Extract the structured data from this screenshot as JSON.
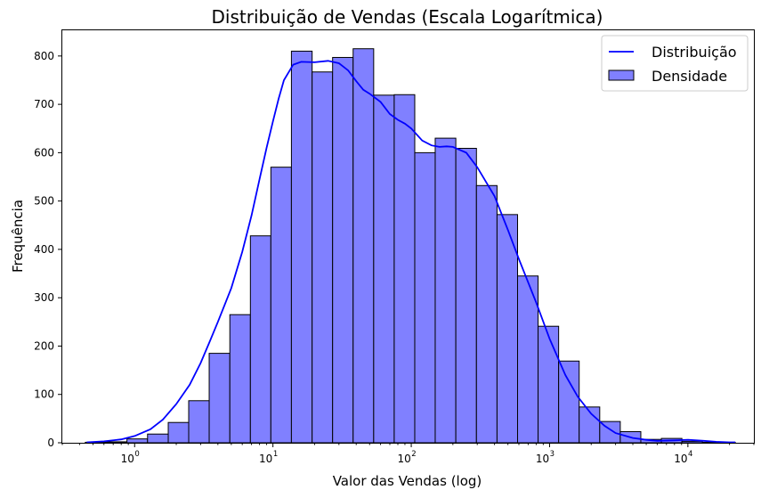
{
  "chart_data": {
    "type": "bar",
    "title": "Distribuição de Vendas (Escala Logarítmica)",
    "xlabel": "Valor das Vendas (log)",
    "ylabel": "Frequência",
    "xscale": "log",
    "xlim": [
      0.3,
      30000
    ],
    "ylim": [
      0,
      855
    ],
    "grid": false,
    "legend_position": "top-right",
    "x_ticks": [
      {
        "value": 1,
        "base": "10",
        "exp": "0"
      },
      {
        "value": 10,
        "base": "10",
        "exp": "1"
      },
      {
        "value": 100,
        "base": "10",
        "exp": "2"
      },
      {
        "value": 1000,
        "base": "10",
        "exp": "3"
      },
      {
        "value": 10000,
        "base": "10",
        "exp": "4"
      }
    ],
    "y_ticks": [
      0,
      100,
      200,
      300,
      400,
      500,
      600,
      700,
      800
    ],
    "bar_color": "#8080ff",
    "bar_edge_color": "#000000",
    "line_color": "#0000ff",
    "bin_edges": [
      0.44,
      0.63,
      0.88,
      1.24,
      1.75,
      2.46,
      3.46,
      4.88,
      6.87,
      9.66,
      13.6,
      19.2,
      27.0,
      38.0,
      53.5,
      75.3,
      106,
      149,
      210,
      296,
      417,
      587,
      826,
      1163,
      1637,
      2305,
      3245,
      4568,
      6431,
      9054,
      12746,
      17945,
      22000
    ],
    "counts": [
      1,
      2,
      8,
      18,
      42,
      87,
      185,
      265,
      428,
      570,
      810,
      767,
      797,
      815,
      719,
      720,
      600,
      630,
      609,
      532,
      472,
      345,
      241,
      169,
      74,
      44,
      23,
      7,
      9,
      3,
      1,
      1
    ],
    "series": [
      {
        "name": "Distribuição",
        "type": "line"
      },
      {
        "name": "Densidade",
        "type": "bar"
      }
    ],
    "kde": {
      "x": [
        0.45,
        0.6,
        0.8,
        1.0,
        1.3,
        1.6,
        2.0,
        2.5,
        3.0,
        3.5,
        4.0,
        5.0,
        6.0,
        7.0,
        8.0,
        9.0,
        10.0,
        11.0,
        12.0,
        14.0,
        16.0,
        20.0,
        25.0,
        30.0,
        35.0,
        40.0,
        45.0,
        50.0,
        60.0,
        70.0,
        80.0,
        90.0,
        100.0,
        120.0,
        140.0,
        160.0,
        180.0,
        200.0,
        250.0,
        300.0,
        400.0,
        500.0,
        600.0,
        800.0,
        1000.0,
        1300.0,
        1600.0,
        2000.0,
        2500.0,
        3000.0,
        4000.0,
        5000.0,
        6000.0,
        8000.0,
        10000.0,
        13000.0,
        16000.0,
        20000.0,
        22000.0
      ],
      "y": [
        1,
        3,
        7,
        14,
        28,
        48,
        80,
        120,
        165,
        210,
        250,
        320,
        395,
        470,
        545,
        610,
        665,
        712,
        750,
        782,
        788,
        787,
        790,
        785,
        770,
        748,
        730,
        722,
        705,
        680,
        668,
        660,
        650,
        625,
        615,
        612,
        613,
        612,
        600,
        570,
        510,
        440,
        380,
        290,
        215,
        140,
        95,
        60,
        35,
        20,
        10,
        6,
        4,
        5,
        6,
        4,
        2,
        1,
        1
      ]
    }
  }
}
